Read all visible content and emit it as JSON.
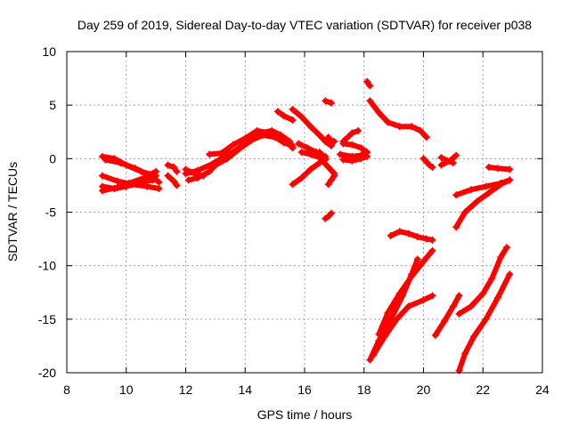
{
  "chart_data": {
    "type": "scatter",
    "title": "Day 259 of 2019, Sidereal Day-to-day VTEC variation (SDTVAR) for receiver p038",
    "xlabel": "GPS time / hours",
    "ylabel": "SDTVAR / TECUs",
    "xlim": [
      8,
      24
    ],
    "ylim": [
      -20,
      10
    ],
    "xticks": [
      8,
      10,
      12,
      14,
      16,
      18,
      20,
      22,
      24
    ],
    "yticks": [
      -20,
      -15,
      -10,
      -5,
      0,
      5,
      10
    ],
    "grid": true,
    "marker": "plus",
    "color": "#ff0000",
    "series": [
      {
        "points": [
          [
            9.2,
            0.2
          ],
          [
            9.6,
            0.0
          ],
          [
            10.0,
            -0.6
          ],
          [
            10.5,
            -1.2
          ],
          [
            11.0,
            -1.6
          ]
        ]
      },
      {
        "points": [
          [
            9.3,
            -0.1
          ],
          [
            9.8,
            -0.4
          ],
          [
            10.3,
            -0.9
          ],
          [
            10.8,
            -1.6
          ],
          [
            11.1,
            -2.2
          ]
        ]
      },
      {
        "points": [
          [
            9.2,
            -1.6
          ],
          [
            9.7,
            -2.1
          ],
          [
            10.2,
            -2.4
          ],
          [
            10.7,
            -2.6
          ],
          [
            11.1,
            -2.8
          ]
        ]
      },
      {
        "points": [
          [
            9.2,
            -2.6
          ],
          [
            9.6,
            -2.8
          ],
          [
            10.0,
            -2.6
          ],
          [
            10.4,
            -2.3
          ],
          [
            10.9,
            -2.0
          ]
        ]
      },
      {
        "points": [
          [
            9.2,
            -3.0
          ],
          [
            9.7,
            -2.7
          ],
          [
            10.1,
            -2.3
          ],
          [
            10.6,
            -1.8
          ],
          [
            11.0,
            -1.2
          ]
        ]
      },
      {
        "points": [
          [
            11.4,
            -0.6
          ],
          [
            11.6,
            -0.8
          ],
          [
            11.7,
            -1.2
          ]
        ]
      },
      {
        "points": [
          [
            11.4,
            -1.6
          ],
          [
            11.6,
            -2.1
          ],
          [
            11.7,
            -2.5
          ]
        ]
      },
      {
        "points": [
          [
            12.0,
            -1.0
          ],
          [
            12.3,
            -1.4
          ],
          [
            12.6,
            -1.6
          ]
        ]
      },
      {
        "points": [
          [
            12.1,
            -2.0
          ],
          [
            12.4,
            -1.8
          ],
          [
            12.8,
            -1.2
          ],
          [
            13.0,
            -0.6
          ],
          [
            13.2,
            -0.2
          ]
        ]
      },
      {
        "points": [
          [
            12.0,
            -1.4
          ],
          [
            12.4,
            -1.1
          ],
          [
            12.9,
            -0.5
          ],
          [
            13.3,
            0.2
          ],
          [
            13.7,
            0.8
          ],
          [
            14.1,
            1.6
          ],
          [
            14.5,
            2.4
          ],
          [
            14.9,
            2.6
          ],
          [
            15.2,
            2.2
          ],
          [
            15.5,
            1.6
          ]
        ]
      },
      {
        "points": [
          [
            12.8,
            0.4
          ],
          [
            13.2,
            0.5
          ],
          [
            13.6,
            1.3
          ],
          [
            14.0,
            1.9
          ],
          [
            14.4,
            2.6
          ],
          [
            14.8,
            2.4
          ],
          [
            15.3,
            1.5
          ],
          [
            15.6,
            1.2
          ]
        ]
      },
      {
        "points": [
          [
            13.0,
            -0.6
          ],
          [
            13.4,
            0.0
          ],
          [
            13.8,
            0.9
          ],
          [
            14.2,
            1.7
          ],
          [
            14.6,
            2.2
          ],
          [
            15.0,
            2.0
          ],
          [
            15.4,
            1.6
          ],
          [
            15.6,
            1.0
          ]
        ]
      },
      {
        "points": [
          [
            15.1,
            4.4
          ],
          [
            15.3,
            4.0
          ],
          [
            15.6,
            3.6
          ]
        ]
      },
      {
        "points": [
          [
            15.6,
            4.6
          ],
          [
            15.9,
            3.9
          ],
          [
            16.2,
            3.0
          ],
          [
            16.5,
            2.2
          ],
          [
            16.7,
            1.6
          ],
          [
            16.9,
            1.2
          ]
        ]
      },
      {
        "points": [
          [
            15.6,
            -2.4
          ],
          [
            15.9,
            -1.8
          ],
          [
            16.2,
            -1.0
          ],
          [
            16.5,
            -0.4
          ],
          [
            16.7,
            0.2
          ]
        ]
      },
      {
        "points": [
          [
            15.9,
            0.6
          ],
          [
            16.2,
            0.4
          ],
          [
            16.5,
            0.1
          ],
          [
            16.7,
            -0.1
          ]
        ]
      },
      {
        "points": [
          [
            15.8,
            1.4
          ],
          [
            16.1,
            1.0
          ],
          [
            16.4,
            0.6
          ]
        ]
      },
      {
        "points": [
          [
            16.5,
            0.6
          ],
          [
            16.7,
            0.0
          ]
        ]
      },
      {
        "points": [
          [
            16.6,
            -0.2
          ],
          [
            16.8,
            -0.8
          ],
          [
            17.0,
            -1.4
          ]
        ]
      },
      {
        "points": [
          [
            16.7,
            5.4
          ],
          [
            16.9,
            5.2
          ]
        ]
      },
      {
        "points": [
          [
            16.8,
            1.8
          ],
          [
            17.0,
            1.6
          ]
        ]
      },
      {
        "points": [
          [
            16.8,
            2.0
          ],
          [
            16.9,
            1.4
          ]
        ]
      },
      {
        "points": [
          [
            17.3,
            1.6
          ],
          [
            17.6,
            2.4
          ],
          [
            17.8,
            2.6
          ]
        ]
      },
      {
        "points": [
          [
            16.8,
            -2.4
          ],
          [
            16.9,
            -2.0
          ],
          [
            17.0,
            -1.6
          ]
        ]
      },
      {
        "points": [
          [
            16.7,
            -5.6
          ],
          [
            16.8,
            -5.4
          ],
          [
            16.9,
            -5.1
          ]
        ]
      },
      {
        "points": [
          [
            17.2,
            0.4
          ],
          [
            17.6,
            0.2
          ],
          [
            17.9,
            0.3
          ],
          [
            18.1,
            0.6
          ]
        ]
      },
      {
        "points": [
          [
            17.3,
            1.4
          ],
          [
            17.6,
            1.3
          ],
          [
            17.9,
            1.0
          ],
          [
            18.1,
            0.6
          ]
        ]
      },
      {
        "points": [
          [
            17.3,
            -0.1
          ],
          [
            17.6,
            -0.2
          ],
          [
            17.9,
            0.0
          ],
          [
            18.1,
            0.2
          ]
        ]
      },
      {
        "points": [
          [
            18.1,
            7.2
          ],
          [
            18.2,
            6.8
          ]
        ]
      },
      {
        "points": [
          [
            18.2,
            5.4
          ],
          [
            18.5,
            4.3
          ],
          [
            18.8,
            3.4
          ],
          [
            19.2,
            3.0
          ],
          [
            19.6,
            3.0
          ],
          [
            19.9,
            2.6
          ],
          [
            20.1,
            2.0
          ]
        ]
      },
      {
        "points": [
          [
            18.9,
            -7.2
          ],
          [
            19.2,
            -6.8
          ],
          [
            19.5,
            -7.0
          ],
          [
            19.8,
            -7.3
          ],
          [
            20.1,
            -7.5
          ],
          [
            20.3,
            -7.6
          ]
        ]
      },
      {
        "points": [
          [
            20.0,
            0.0
          ],
          [
            20.2,
            -0.6
          ],
          [
            20.3,
            -0.8
          ]
        ]
      },
      {
        "points": [
          [
            20.6,
            -0.6
          ],
          [
            20.9,
            -0.2
          ],
          [
            21.1,
            0.3
          ]
        ]
      },
      {
        "points": [
          [
            20.6,
            0.1
          ],
          [
            20.8,
            -0.2
          ],
          [
            21.0,
            -0.4
          ]
        ]
      },
      {
        "points": [
          [
            18.2,
            -18.8
          ],
          [
            18.5,
            -17.0
          ],
          [
            18.9,
            -15.0
          ],
          [
            19.3,
            -12.8
          ],
          [
            19.6,
            -10.8
          ],
          [
            19.8,
            -9.4
          ]
        ]
      },
      {
        "points": [
          [
            18.3,
            -18.4
          ],
          [
            18.7,
            -16.6
          ],
          [
            19.1,
            -15.0
          ],
          [
            19.5,
            -13.8
          ],
          [
            20.0,
            -13.2
          ],
          [
            20.3,
            -12.8
          ]
        ]
      },
      {
        "points": [
          [
            18.5,
            -16.4
          ],
          [
            18.8,
            -14.4
          ],
          [
            19.2,
            -12.6
          ],
          [
            19.6,
            -11.0
          ],
          [
            20.0,
            -9.6
          ],
          [
            20.3,
            -8.6
          ]
        ]
      },
      {
        "points": [
          [
            20.4,
            -16.5
          ],
          [
            20.7,
            -15.2
          ],
          [
            21.0,
            -13.8
          ],
          [
            21.2,
            -12.8
          ]
        ]
      },
      {
        "points": [
          [
            21.1,
            -6.4
          ],
          [
            21.4,
            -5.0
          ],
          [
            21.8,
            -4.0
          ],
          [
            22.2,
            -3.2
          ],
          [
            22.6,
            -2.4
          ],
          [
            22.9,
            -2.0
          ]
        ]
      },
      {
        "points": [
          [
            21.1,
            -3.4
          ],
          [
            21.6,
            -2.9
          ],
          [
            22.1,
            -2.6
          ],
          [
            22.6,
            -2.3
          ],
          [
            22.9,
            -2.0
          ]
        ]
      },
      {
        "points": [
          [
            22.2,
            -0.8
          ],
          [
            22.5,
            -0.9
          ],
          [
            22.9,
            -1.0
          ]
        ]
      },
      {
        "points": [
          [
            21.2,
            -14.5
          ],
          [
            21.6,
            -13.8
          ],
          [
            22.0,
            -12.6
          ],
          [
            22.3,
            -11.2
          ],
          [
            22.6,
            -9.2
          ],
          [
            22.8,
            -8.3
          ]
        ]
      },
      {
        "points": [
          [
            21.2,
            -19.8
          ],
          [
            21.4,
            -18.2
          ],
          [
            21.7,
            -16.6
          ],
          [
            22.1,
            -15.0
          ],
          [
            22.5,
            -13.0
          ],
          [
            22.9,
            -10.8
          ]
        ]
      }
    ]
  }
}
